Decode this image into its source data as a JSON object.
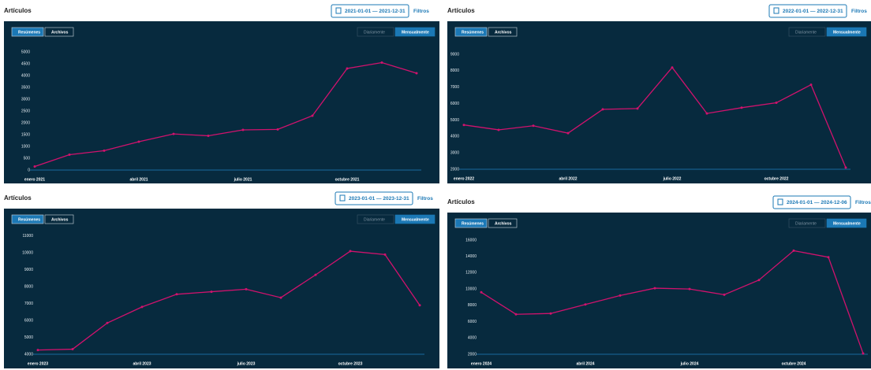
{
  "chart_data": [
    {
      "type": "line",
      "title": "Artículos",
      "date_range": "2021-01-01 — 2021-12-31",
      "filter_button": "Filtros",
      "data_toggle": [
        "Resúmenes",
        "Archivos"
      ],
      "period_toggle": [
        "Diariamente",
        "Mensualmente"
      ],
      "categories": [
        "enero 2021",
        null,
        null,
        "abril 2021",
        null,
        null,
        "julio 2021",
        null,
        null,
        "octubre 2021",
        null,
        null
      ],
      "values": [
        150,
        650,
        820,
        1200,
        1530,
        1450,
        1700,
        1720,
        2300,
        4300,
        4550,
        4100
      ],
      "color": "#d1126d",
      "ylim": [
        0,
        5500
      ],
      "yticks": [
        0,
        500,
        1000,
        1500,
        2000,
        2500,
        3000,
        3500,
        4000,
        4500,
        5000
      ]
    },
    {
      "type": "line",
      "title": "Artículos",
      "date_range": "2022-01-01 — 2022-12-31",
      "filter_button": "Filtros",
      "data_toggle": [
        "Resúmenes",
        "Archivos"
      ],
      "period_toggle": [
        "Diariamente",
        "Mensualmente"
      ],
      "categories": [
        "enero 2022",
        null,
        null,
        "abril 2022",
        null,
        null,
        "julio 2022",
        null,
        null,
        "octubre 2022",
        null,
        null
      ],
      "values": [
        4700,
        4400,
        4650,
        4200,
        5650,
        5700,
        8200,
        5400,
        5750,
        6050,
        7150,
        2100
      ],
      "color": "#d1126d",
      "ylim": [
        2000,
        9500
      ],
      "yticks": [
        2000,
        3000,
        4000,
        5000,
        6000,
        7000,
        8000,
        9000
      ]
    },
    {
      "type": "line",
      "title": "Artículos",
      "date_range": "2023-01-01 — 2023-12-31",
      "filter_button": "Filtros",
      "data_toggle": [
        "Resúmenes",
        "Archivos"
      ],
      "period_toggle": [
        "Diariamente",
        "Mensualmente"
      ],
      "categories": [
        "enero 2023",
        null,
        null,
        "abril 2023",
        null,
        null,
        "julio 2023",
        null,
        null,
        "octubre 2023",
        null,
        null
      ],
      "values": [
        4250,
        4300,
        5850,
        6800,
        7550,
        7700,
        7850,
        7350,
        8700,
        10100,
        9900,
        6900
      ],
      "color": "#d1126d",
      "ylim": [
        4000,
        11500
      ],
      "yticks": [
        4000,
        5000,
        6000,
        7000,
        8000,
        9000,
        10000,
        11000
      ]
    },
    {
      "type": "line",
      "title": "Artículos",
      "date_range": "2024-01-01 — 2024-12-06",
      "filter_button": "Filtros",
      "data_toggle": [
        "Resúmenes",
        "Archivos"
      ],
      "period_toggle": [
        "Diariamente",
        "Mensualmente"
      ],
      "categories": [
        "enero 2024",
        null,
        null,
        "abril 2024",
        null,
        null,
        "julio 2024",
        null,
        null,
        "octubre 2024",
        null,
        null
      ],
      "values": [
        9600,
        6900,
        7000,
        8100,
        9200,
        10100,
        10000,
        9300,
        11100,
        14700,
        13900,
        2100
      ],
      "color": "#d1126d",
      "ylim": [
        2000,
        17000
      ],
      "yticks": [
        2000,
        4000,
        6000,
        8000,
        10000,
        12000,
        14000,
        16000
      ]
    }
  ]
}
